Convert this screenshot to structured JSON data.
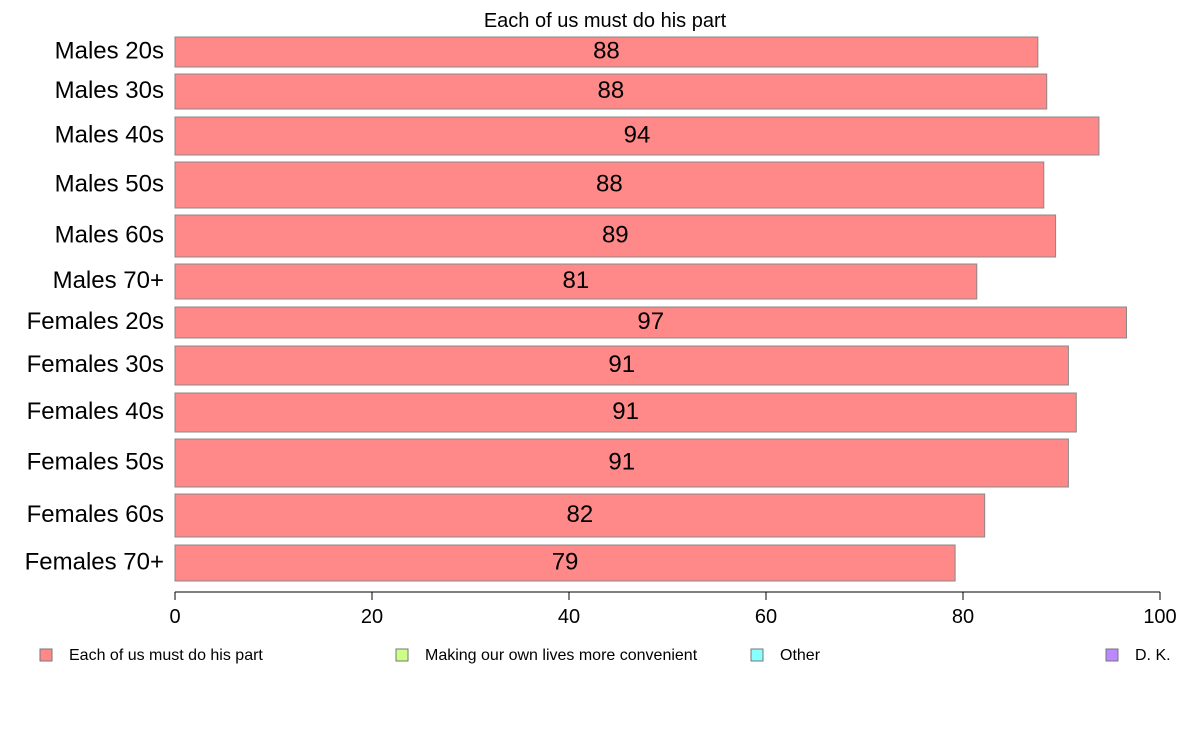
{
  "chart_data": {
    "type": "bar",
    "orientation": "horizontal",
    "title": "Each of us must do his part",
    "categories": [
      "Males 20s",
      "Males 30s",
      "Males 40s",
      "Males 50s",
      "Males 60s",
      "Males 70+",
      "Females 20s",
      "Females 30s",
      "Females 40s",
      "Females 50s",
      "Females 60s",
      "Females 70+"
    ],
    "series": [
      {
        "name": "Each of us must do his part",
        "values": [
          87.6,
          88.5,
          93.8,
          88.2,
          89.4,
          81.4,
          96.6,
          90.7,
          91.5,
          90.7,
          82.2,
          79.2
        ],
        "labels": [
          "88",
          "88",
          "94",
          "88",
          "89",
          "81",
          "97",
          "91",
          "91",
          "91",
          "82",
          "79"
        ],
        "color": "#ff8888"
      }
    ],
    "xlim": [
      0,
      100
    ],
    "xticks": [
      "0",
      "20",
      "40",
      "60",
      "80",
      "100"
    ],
    "legend": {
      "placement": "bottom",
      "items": [
        {
          "label": "Each of us must do his part",
          "color": "#ff8888"
        },
        {
          "label": "Making our own lives more convenient",
          "color": "#ccff88"
        },
        {
          "label": "Other",
          "color": "#88ffff"
        },
        {
          "label": "D. K.",
          "color": "#bb88ff"
        }
      ]
    },
    "grid": false
  }
}
